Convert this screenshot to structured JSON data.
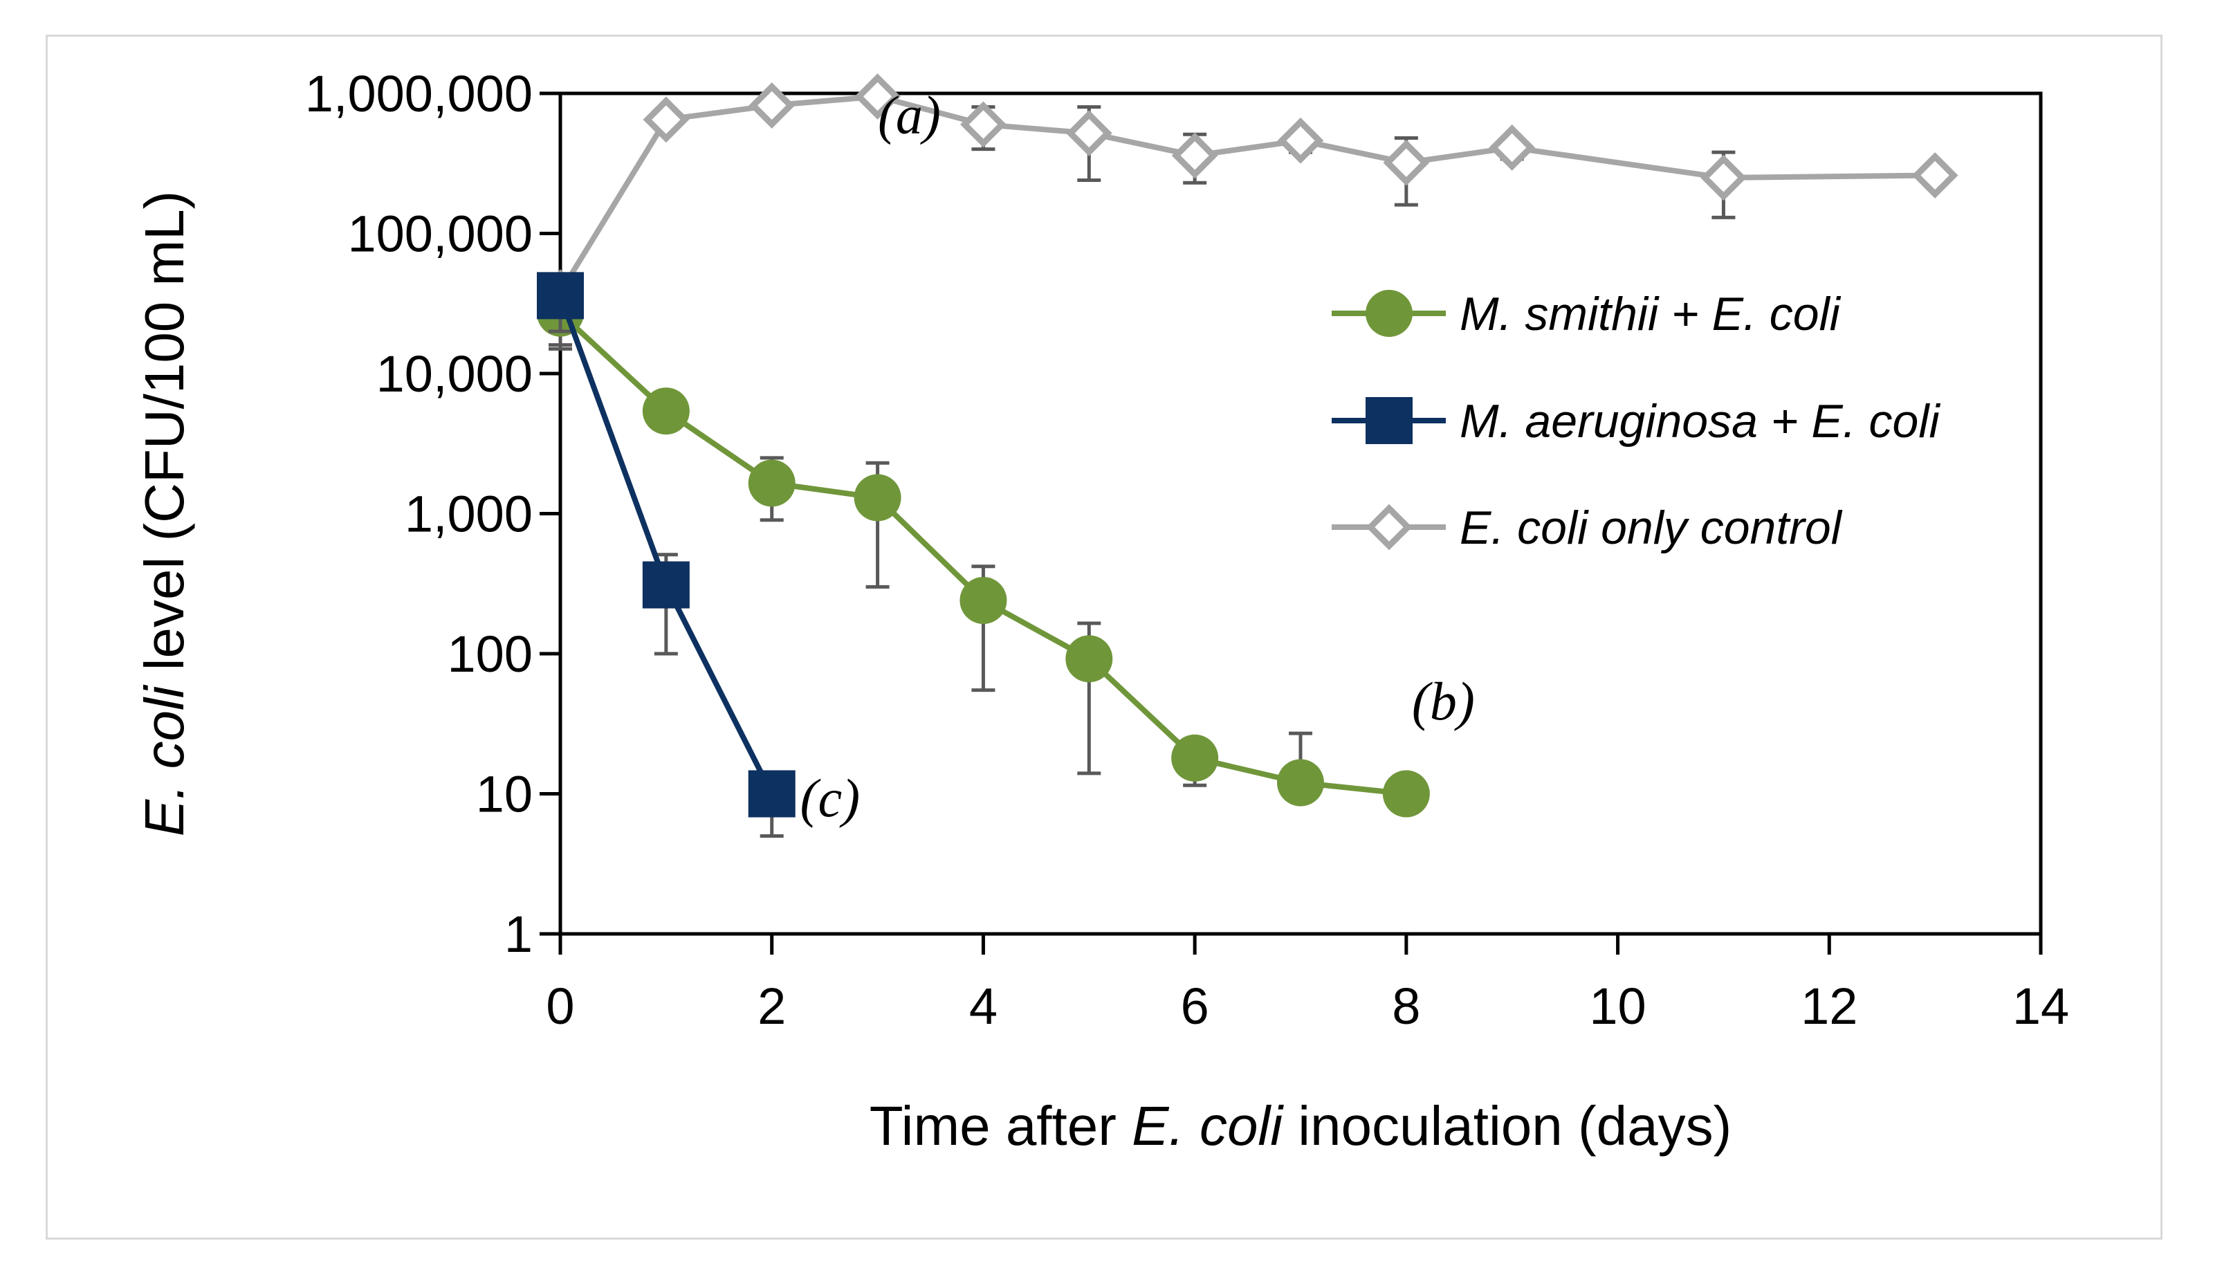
{
  "chart_data": {
    "type": "line",
    "yscale": "log",
    "xlabel": {
      "prefix": "Time after ",
      "italic": "E. coli",
      "suffix": " inoculation (days)"
    },
    "ylabel": {
      "italic": "E. coli",
      "suffix": " level (CFU/100 mL)"
    },
    "xlim": [
      0,
      14
    ],
    "ylim": [
      1,
      1000000
    ],
    "x_ticks": [
      {
        "value": 0,
        "label": "0"
      },
      {
        "value": 2,
        "label": "2"
      },
      {
        "value": 4,
        "label": "4"
      },
      {
        "value": 6,
        "label": "6"
      },
      {
        "value": 8,
        "label": "8"
      },
      {
        "value": 10,
        "label": "10"
      },
      {
        "value": 12,
        "label": "12"
      },
      {
        "value": 14,
        "label": "14"
      }
    ],
    "y_ticks": [
      {
        "value": 1,
        "label": "1"
      },
      {
        "value": 10,
        "label": "10"
      },
      {
        "value": 100,
        "label": "100"
      },
      {
        "value": 1000,
        "label": "1,000"
      },
      {
        "value": 10000,
        "label": "10,000"
      },
      {
        "value": 100000,
        "label": "100,000"
      },
      {
        "value": 1000000,
        "label": "1,000,000"
      }
    ],
    "series": [
      {
        "name": "E. coli only control",
        "key": "control",
        "color": "#a6a6a6",
        "marker": "diamond-open",
        "points": [
          {
            "x": 0,
            "y": 38000,
            "err_lo": 16000,
            "err_hi": 48000
          },
          {
            "x": 1,
            "y": 650000
          },
          {
            "x": 2,
            "y": 820000
          },
          {
            "x": 3,
            "y": 950000,
            "err_lo": 820000,
            "err_hi": 1000000
          },
          {
            "x": 4,
            "y": 600000,
            "err_lo": 400000,
            "err_hi": 800000
          },
          {
            "x": 5,
            "y": 520000,
            "err_lo": 240000,
            "err_hi": 800000
          },
          {
            "x": 6,
            "y": 360000,
            "err_lo": 230000,
            "err_hi": 510000
          },
          {
            "x": 7,
            "y": 460000,
            "err_lo": 380000,
            "err_hi": 520000
          },
          {
            "x": 8,
            "y": 320000,
            "err_lo": 160000,
            "err_hi": 480000
          },
          {
            "x": 9,
            "y": 410000,
            "err_lo": 340000,
            "err_hi": 460000
          },
          {
            "x": 11,
            "y": 250000,
            "err_lo": 130000,
            "err_hi": 380000
          },
          {
            "x": 13,
            "y": 260000,
            "err_lo": 240000,
            "err_hi": 280000
          }
        ]
      },
      {
        "name": "M. smithii + E. coli",
        "key": "smithii",
        "color": "#70963a",
        "marker": "circle",
        "points": [
          {
            "x": 0,
            "y": 27000,
            "err_lo": 15000,
            "err_hi": 36000
          },
          {
            "x": 1,
            "y": 5400
          },
          {
            "x": 2,
            "y": 1650,
            "err_lo": 900,
            "err_hi": 2500
          },
          {
            "x": 3,
            "y": 1300,
            "err_lo": 300,
            "err_hi": 2300
          },
          {
            "x": 4,
            "y": 240,
            "err_lo": 55,
            "err_hi": 420
          },
          {
            "x": 5,
            "y": 92,
            "err_lo": 14,
            "err_hi": 165
          },
          {
            "x": 6,
            "y": 18,
            "err_lo": 11.5,
            "err_hi": 18
          },
          {
            "x": 7,
            "y": 12,
            "err_lo": 12,
            "err_hi": 27
          },
          {
            "x": 8,
            "y": 10
          }
        ]
      },
      {
        "name": "M. aeruginosa + E. coli",
        "key": "aeruginosa",
        "color": "#0d3160",
        "marker": "square",
        "points": [
          {
            "x": 0,
            "y": 36000,
            "err_lo": 20000,
            "err_hi": 42000
          },
          {
            "x": 1,
            "y": 310,
            "err_lo": 100,
            "err_hi": 510
          },
          {
            "x": 2,
            "y": 10,
            "err_lo": 5,
            "err_hi": 10
          }
        ]
      }
    ],
    "legend": {
      "position": "right",
      "entries": [
        "M. smithii + E. coli",
        "M. aeruginosa + E. coli",
        "E. coli only control"
      ]
    },
    "annotations": [
      {
        "label": "(a)",
        "x": 3.3,
        "y": 520000
      },
      {
        "label": "(b)",
        "x": 8.35,
        "y": 34
      },
      {
        "label": "(c)",
        "x": 2.55,
        "y": 6.9
      }
    ]
  }
}
